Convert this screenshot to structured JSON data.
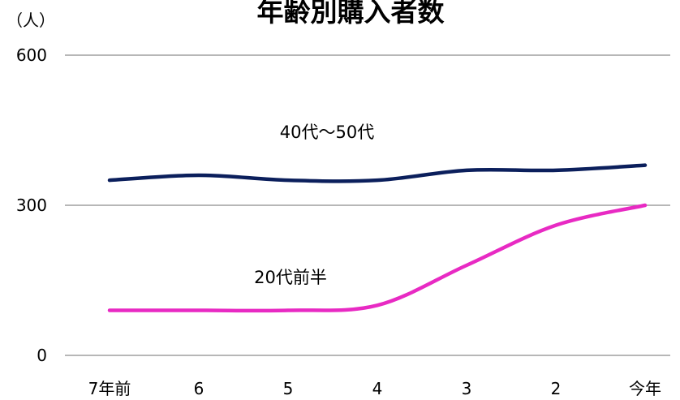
{
  "chart_data": {
    "type": "line",
    "title": "年齢別購入者数",
    "unit_label": "（人）",
    "categories": [
      "7年前",
      "6",
      "5",
      "4",
      "3",
      "2",
      "今年"
    ],
    "ylim": [
      0,
      600
    ],
    "yticks": [
      0,
      300,
      600
    ],
    "grid": true,
    "series": [
      {
        "name": "40代～50代",
        "color": "#0b1f5c",
        "values": [
          350,
          360,
          350,
          350,
          370,
          370,
          380
        ]
      },
      {
        "name": "20代前半",
        "color": "#e82ac3",
        "values": [
          90,
          90,
          90,
          100,
          180,
          260,
          300
        ]
      }
    ]
  }
}
